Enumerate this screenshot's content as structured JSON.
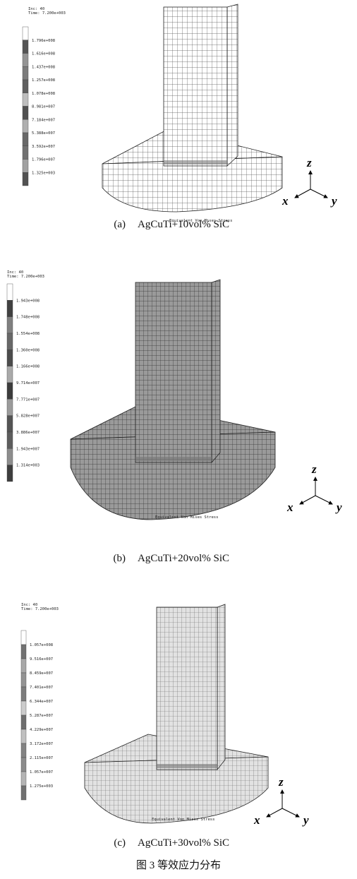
{
  "panels": [
    {
      "inc": "Inc:   40",
      "time": "Time:  7.200e+003",
      "legend": [
        "1.796e+008",
        "1.616e+008",
        "1.437e+008",
        "1.257e+008",
        "1.078e+008",
        "8.981e+007",
        "7.184e+007",
        "5.388e+007",
        "3.592e+007",
        "1.796e+007",
        "1.325e+003"
      ],
      "footer": "Equivalent Von Mises Stress",
      "axes": {
        "z": "z",
        "x": "x",
        "y": "y"
      },
      "caption_label": "(a)",
      "caption": "AgCuTi+10vol% SiC"
    },
    {
      "inc": "Inc:   40",
      "time": "Time:  7.200e+003",
      "legend": [
        "1.943e+008",
        "1.748e+008",
        "1.554e+008",
        "1.360e+008",
        "1.166e+008",
        "9.714e+007",
        "7.771e+007",
        "5.828e+007",
        "3.886e+007",
        "1.943e+007",
        "1.314e+003"
      ],
      "footer": "Equivalent Von Mises Stress",
      "axes": {
        "z": "z",
        "x": "x",
        "y": "y"
      },
      "caption_label": "(b)",
      "caption": "AgCuTi+20vol% SiC"
    },
    {
      "inc": "Inc:   40",
      "time": "Time:  7.200e+003",
      "legend": [
        "1.057e+008",
        "9.516e+007",
        "8.459e+007",
        "7.401e+007",
        "6.344e+007",
        "5.287e+007",
        "4.229e+007",
        "3.172e+007",
        "2.115e+007",
        "1.057e+007",
        "1.275e+003"
      ],
      "footer": "Equivalent Von Mises Stress",
      "axes": {
        "z": "z",
        "x": "x",
        "y": "y"
      },
      "caption_label": "(c)",
      "caption": "AgCuTi+30vol% SiC"
    }
  ],
  "figure_caption": "图 3  等效应力分布"
}
